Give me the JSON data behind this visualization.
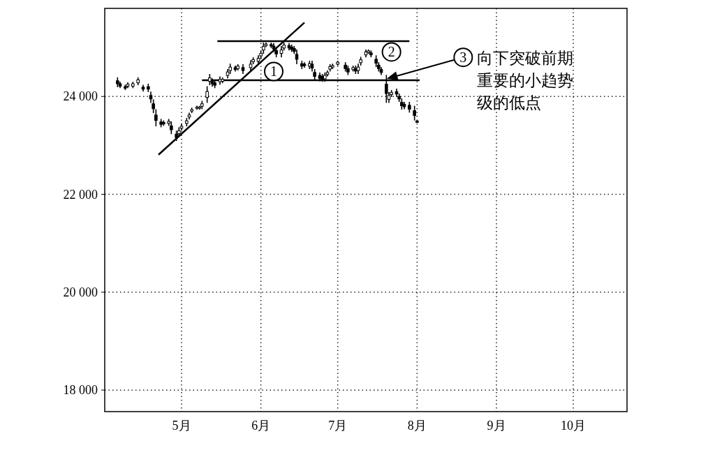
{
  "chart_data": {
    "type": "candlestick",
    "color": "#000000",
    "xlim": [
      "--04-01",
      "--10-22"
    ],
    "ylim": [
      17560,
      25800
    ],
    "xticks": [
      {
        "value": "--05-01",
        "label": "5月"
      },
      {
        "value": "--06-01",
        "label": "6月"
      },
      {
        "value": "--07-01",
        "label": "7月"
      },
      {
        "value": "--08-01",
        "label": "8月"
      },
      {
        "value": "--09-01",
        "label": "9月"
      },
      {
        "value": "--10-01",
        "label": "10月"
      }
    ],
    "yticks": [
      {
        "value": 18000,
        "label": "18 000"
      },
      {
        "value": 20000,
        "label": "20 000"
      },
      {
        "value": 22000,
        "label": "22 000"
      },
      {
        "value": 24000,
        "label": "24 000"
      }
    ],
    "grid": true,
    "x": [
      "--04-06",
      "--04-07",
      "--04-09",
      "--04-10",
      "--04-12",
      "--04-14",
      "--04-16",
      "--04-18",
      "--04-19",
      "--04-20",
      "--04-21",
      "--04-23",
      "--04-24",
      "--04-26",
      "--04-27",
      "--04-29",
      "--04-30",
      "--05-01",
      "--05-03",
      "--05-04",
      "--05-05",
      "--05-07",
      "--05-08",
      "--05-09",
      "--05-11",
      "--05-12",
      "--05-13",
      "--05-14",
      "--05-16",
      "--05-17",
      "--05-19",
      "--05-20",
      "--05-22",
      "--05-23",
      "--05-25",
      "--05-28",
      "--05-29",
      "--05-31",
      "--06-01",
      "--06-02",
      "--06-03",
      "--06-05",
      "--06-06",
      "--06-07",
      "--06-09",
      "--06-10",
      "--06-12",
      "--06-13",
      "--06-14",
      "--06-15",
      "--06-17",
      "--06-18",
      "--06-20",
      "--06-21",
      "--06-22",
      "--06-24",
      "--06-25",
      "--06-26",
      "--06-27",
      "--06-28",
      "--06-29",
      "--07-01",
      "--07-04",
      "--07-05",
      "--07-07",
      "--07-08",
      "--07-09",
      "--07-10",
      "--07-12",
      "--07-13",
      "--07-14",
      "--07-16",
      "--07-17",
      "--07-18",
      "--07-20",
      "--07-21",
      "--07-22",
      "--07-24",
      "--07-25",
      "--07-26",
      "--07-27",
      "--07-29",
      "--07-31",
      "--08-01"
    ],
    "ohlc": [
      [
        24320,
        24390,
        24190,
        24260
      ],
      [
        24260,
        24300,
        24170,
        24210
      ],
      [
        24200,
        24240,
        24130,
        24170
      ],
      [
        24210,
        24290,
        24170,
        24250
      ],
      [
        24210,
        24300,
        24170,
        24260
      ],
      [
        24280,
        24390,
        24230,
        24340
      ],
      [
        24190,
        24240,
        24100,
        24150
      ],
      [
        24200,
        24260,
        24090,
        24150
      ],
      [
        24020,
        24100,
        23870,
        23950
      ],
      [
        23850,
        23940,
        23660,
        23750
      ],
      [
        23620,
        23740,
        23390,
        23510
      ],
      [
        23480,
        23540,
        23370,
        23430
      ],
      [
        23470,
        23510,
        23400,
        23440
      ],
      [
        23450,
        23540,
        23400,
        23490
      ],
      [
        23400,
        23490,
        23230,
        23320
      ],
      [
        23230,
        23300,
        23090,
        23160
      ],
      [
        23240,
        23370,
        23170,
        23300
      ],
      [
        23350,
        23440,
        23300,
        23390
      ],
      [
        23450,
        23560,
        23390,
        23500
      ],
      [
        23580,
        23670,
        23530,
        23620
      ],
      [
        23700,
        23770,
        23660,
        23730
      ],
      [
        23760,
        23810,
        23730,
        23780
      ],
      [
        23760,
        23810,
        23730,
        23780
      ],
      [
        23800,
        23910,
        23740,
        23850
      ],
      [
        23980,
        24210,
        23870,
        24100
      ],
      [
        24310,
        24460,
        24230,
        24380
      ],
      [
        24310,
        24370,
        24200,
        24260
      ],
      [
        24280,
        24340,
        24170,
        24230
      ],
      [
        24300,
        24410,
        24240,
        24350
      ],
      [
        24310,
        24390,
        24270,
        24350
      ],
      [
        24430,
        24560,
        24370,
        24500
      ],
      [
        24530,
        24670,
        24460,
        24600
      ],
      [
        24590,
        24630,
        24510,
        24550
      ],
      [
        24570,
        24660,
        24530,
        24620
      ],
      [
        24590,
        24660,
        24460,
        24530
      ],
      [
        24590,
        24740,
        24510,
        24660
      ],
      [
        24710,
        24800,
        24660,
        24750
      ],
      [
        24720,
        24840,
        24660,
        24780
      ],
      [
        24830,
        24940,
        24770,
        24880
      ],
      [
        24950,
        25100,
        24870,
        25020
      ],
      [
        25040,
        25100,
        25010,
        25070
      ],
      [
        25060,
        25100,
        24990,
        25030
      ],
      [
        25030,
        25090,
        24910,
        24970
      ],
      [
        24940,
        25010,
        24800,
        24870
      ],
      [
        24880,
        25030,
        24800,
        24950
      ],
      [
        24990,
        25100,
        24940,
        25050
      ],
      [
        25040,
        25090,
        24940,
        24990
      ],
      [
        25010,
        25060,
        24910,
        24960
      ],
      [
        24980,
        25030,
        24870,
        24920
      ],
      [
        24860,
        24960,
        24660,
        24760
      ],
      [
        24670,
        24730,
        24560,
        24620
      ],
      [
        24660,
        24700,
        24590,
        24630
      ],
      [
        24620,
        24730,
        24560,
        24670
      ],
      [
        24660,
        24730,
        24510,
        24580
      ],
      [
        24490,
        24560,
        24340,
        24410
      ],
      [
        24430,
        24490,
        24310,
        24370
      ],
      [
        24410,
        24460,
        24300,
        24350
      ],
      [
        24360,
        24490,
        24300,
        24430
      ],
      [
        24450,
        24530,
        24410,
        24490
      ],
      [
        24560,
        24660,
        24510,
        24610
      ],
      [
        24600,
        24670,
        24560,
        24630
      ],
      [
        24660,
        24730,
        24630,
        24700
      ],
      [
        24640,
        24700,
        24510,
        24570
      ],
      [
        24570,
        24630,
        24440,
        24500
      ],
      [
        24550,
        24630,
        24510,
        24590
      ],
      [
        24570,
        24630,
        24460,
        24520
      ],
      [
        24530,
        24670,
        24460,
        24600
      ],
      [
        24690,
        24810,
        24630,
        24750
      ],
      [
        24850,
        24960,
        24800,
        24910
      ],
      [
        24900,
        24960,
        24870,
        24930
      ],
      [
        24890,
        24940,
        24800,
        24850
      ],
      [
        24760,
        24840,
        24600,
        24680
      ],
      [
        24640,
        24700,
        24510,
        24570
      ],
      [
        24550,
        24600,
        24440,
        24490
      ],
      [
        24250,
        24440,
        23870,
        24060
      ],
      [
        23940,
        24090,
        23870,
        24020
      ],
      [
        24040,
        24130,
        23990,
        24080
      ],
      [
        24100,
        24160,
        23990,
        24050
      ],
      [
        24000,
        24060,
        23890,
        23950
      ],
      [
        23880,
        23960,
        23730,
        23810
      ],
      [
        23840,
        23890,
        23740,
        23790
      ],
      [
        23820,
        23890,
        23670,
        23740
      ],
      [
        23710,
        23810,
        23510,
        23610
      ],
      [
        23500,
        23510,
        23460,
        23470
      ]
    ],
    "series": [
      {
        "type": "line",
        "color": "#000000",
        "x": [
          "--04-22",
          "--06-18"
        ],
        "values": [
          22810,
          25510
        ]
      },
      {
        "type": "line",
        "color": "#000000",
        "x": [
          "--05-15",
          "--07-29"
        ],
        "values": [
          25130,
          25130
        ]
      },
      {
        "type": "line",
        "color": "#000000",
        "x": [
          "--05-09",
          "--08-02"
        ],
        "values": [
          24330,
          24330
        ]
      }
    ],
    "annotations": [
      {
        "text": "1",
        "x": "--06-06",
        "y": 24510
      },
      {
        "text": "2",
        "x": "--07-22",
        "y": 24910
      },
      {
        "text": "3",
        "x": "--08-19",
        "y": 24800
      },
      "向下突破前期重要的小趋势级的低点"
    ]
  }
}
